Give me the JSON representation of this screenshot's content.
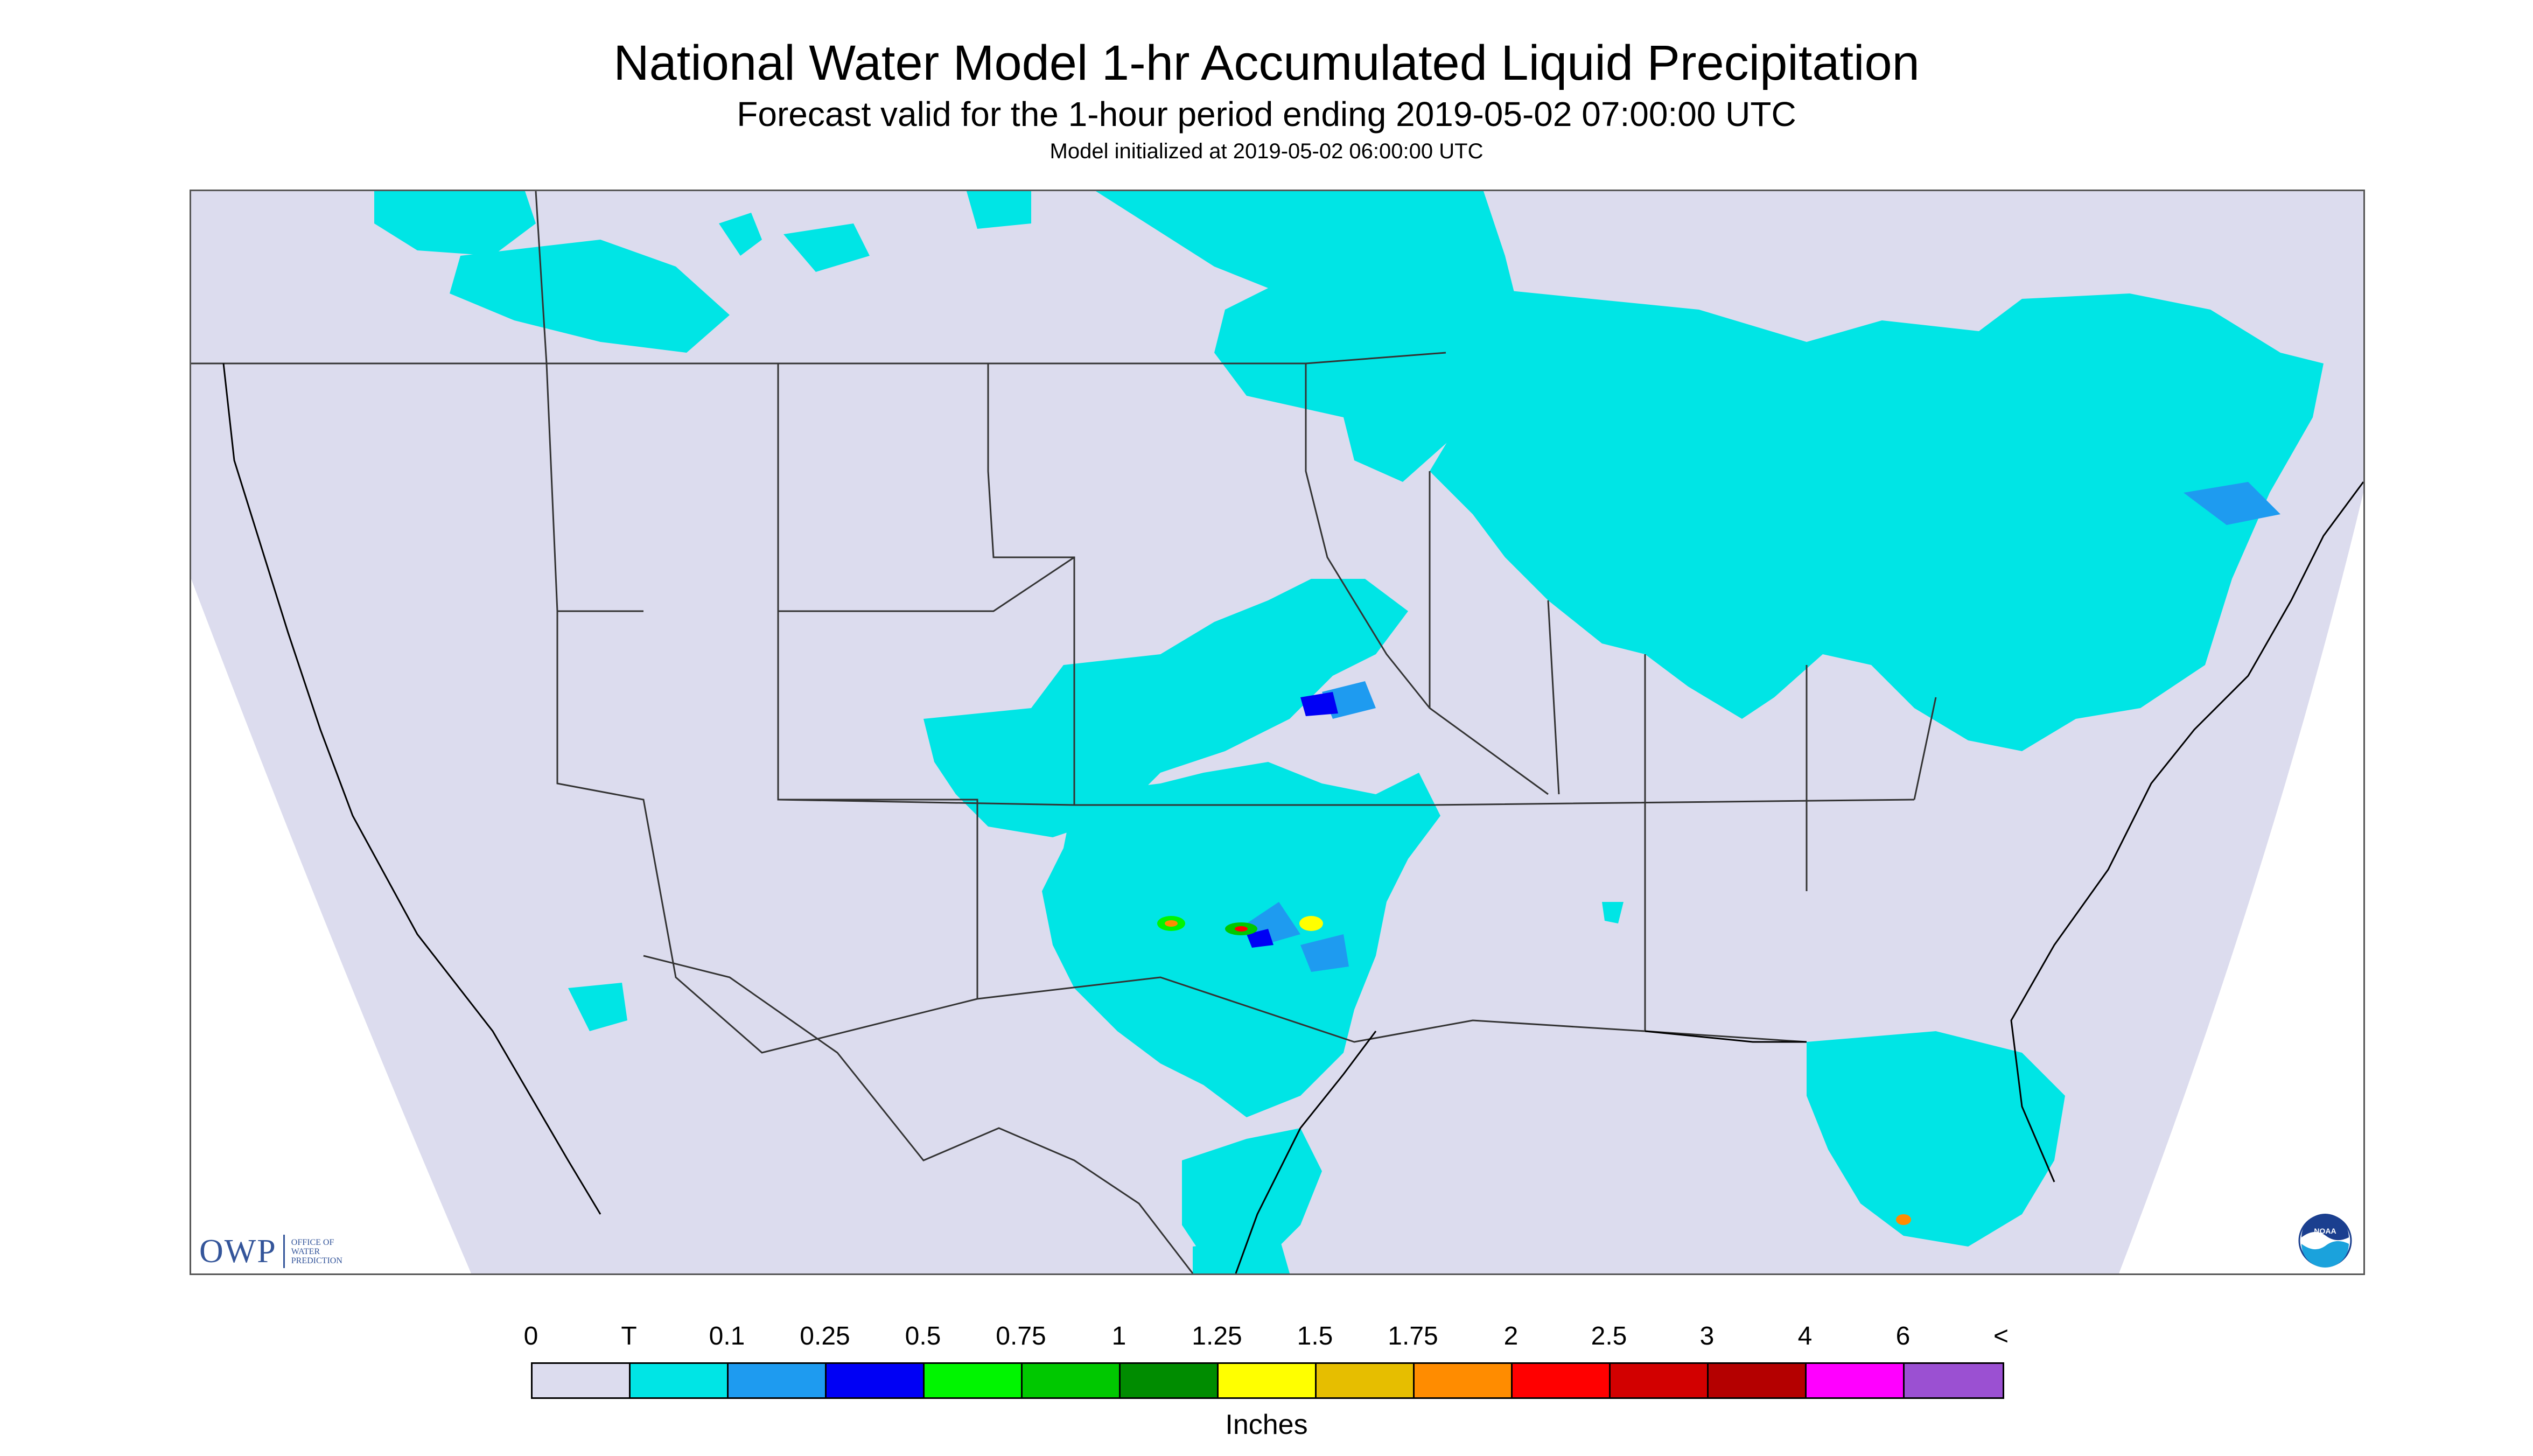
{
  "header": {
    "title": "National Water Model 1-hr Accumulated Liquid Precipitation",
    "subtitle": "Forecast valid for the 1-hour period ending 2019-05-02 07:00:00 UTC",
    "init": "Model initialized at 2019-05-02 06:00:00 UTC"
  },
  "logos": {
    "owp_mark": "OWP",
    "owp_line1": "OFFICE OF",
    "owp_line2": "WATER",
    "owp_line3": "PREDICTION",
    "noaa_text": "NOAA"
  },
  "legend": {
    "labels": [
      "0",
      "T",
      "0.1",
      "0.25",
      "0.5",
      "0.75",
      "1",
      "1.25",
      "1.5",
      "1.75",
      "2",
      "2.5",
      "3",
      "4",
      "6",
      "<"
    ],
    "colors": [
      "#dcdcee",
      "#00e5e5",
      "#1e9bf0",
      "#0000f5",
      "#00f500",
      "#00c800",
      "#008c00",
      "#ffff00",
      "#e6be00",
      "#ff8c00",
      "#ff0000",
      "#d20000",
      "#b40000",
      "#ff00ff",
      "#9b50d2"
    ],
    "units": "Inches"
  },
  "map": {
    "background_color": "#dcdcee",
    "outside_color": "#ffffff",
    "boundary_color": "#000000",
    "precip_trace_color": "#00e5e5"
  }
}
